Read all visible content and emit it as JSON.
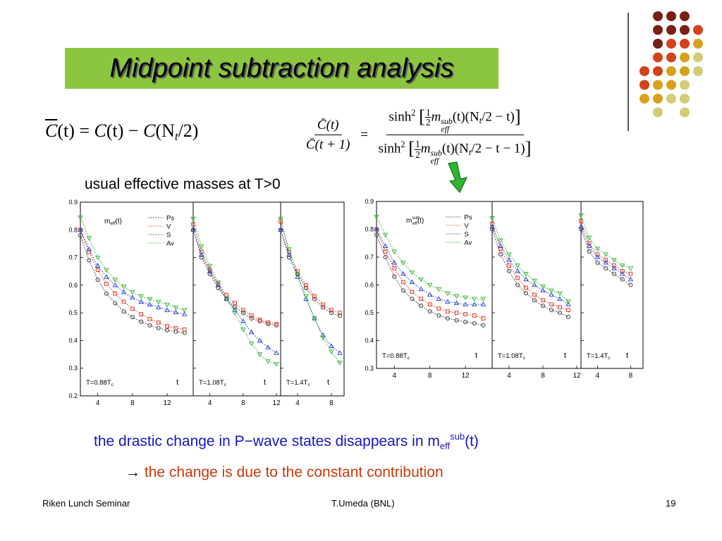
{
  "slide": {
    "title": "Midpoint subtraction analysis",
    "caption_top": "usual effective masses at T>0",
    "line1_text": "the drastic change in P−wave states disappears in m",
    "line1_sub": "eff",
    "line1_sup": "sub",
    "line1_tail": "(t)",
    "line2_arrow": "→",
    "line2_text": "the change is due to the constant contribution",
    "footer_left": "Riken Lunch Seminar",
    "footer_center": "T.Umeda (BNL)",
    "footer_right": "19",
    "accent_color": "#8cc63f",
    "arrow_color": "#2db52d",
    "icons": [
      "down-arrow-icon",
      "decorative-dots-icon"
    ]
  },
  "formulas": {
    "f1": {
      "cbar": "C",
      "arg1": "(t) = ",
      "c1": "C",
      "arg2": "(t) − ",
      "c2": "C",
      "arg3": "(N",
      "nsub": "t",
      "arg4": "/2)"
    },
    "f2": {
      "lhs_num": "C̄(t)",
      "lhs_den": "C̄(t + 1)",
      "eq": "=",
      "sinh": "sinh",
      "sq": "2",
      "half_n": "1",
      "half_d": "2",
      "m": "m",
      "sup": "sub",
      "subs": "eff",
      "num_tail": "(t)(N",
      "num_tail2": "/2 − t)",
      "den_tail2": "/2 − t − 1)",
      "nt": "t"
    }
  },
  "chart_data": [
    {
      "type": "line",
      "panel_group": "left",
      "ylim": [
        0.2,
        0.9
      ],
      "yticks": [
        "0.9",
        "0.8",
        "0.7",
        "0.6",
        "0.5",
        "0.4",
        "0.3",
        "0.2"
      ],
      "ytick_values": [
        0.9,
        0.8,
        0.7,
        0.6,
        0.5,
        0.4,
        0.3,
        0.2
      ],
      "legend_title": "m",
      "legend_title_sub": "eff",
      "legend_title_tail": "(t)",
      "legend": [
        "Ps",
        "V",
        "S",
        "Av"
      ],
      "series_colors": [
        "#333333",
        "#e03020",
        "#2040d0",
        "#30b030"
      ],
      "xlabel": "t",
      "panels": [
        {
          "label": "T=0.88T",
          "label_sub": "c",
          "xlim": [
            2,
            15
          ],
          "xticks": [
            "4",
            "8",
            "12"
          ],
          "xtick_values": [
            4,
            8,
            12
          ],
          "x": [
            2,
            3,
            4,
            5,
            6,
            7,
            8,
            9,
            10,
            11,
            12,
            13,
            14
          ],
          "series": [
            {
              "name": "Ps",
              "values": [
                0.78,
                0.69,
                0.62,
                0.57,
                0.535,
                0.505,
                0.485,
                0.468,
                0.455,
                0.445,
                0.437,
                0.432,
                0.428
              ]
            },
            {
              "name": "V",
              "values": [
                0.8,
                0.72,
                0.655,
                0.605,
                0.57,
                0.54,
                0.515,
                0.495,
                0.478,
                0.465,
                0.452,
                0.445,
                0.44
              ]
            },
            {
              "name": "S",
              "values": [
                0.8,
                0.73,
                0.67,
                0.63,
                0.6,
                0.575,
                0.555,
                0.54,
                0.53,
                0.52,
                0.51,
                0.502,
                0.495
              ]
            },
            {
              "name": "Av",
              "values": [
                0.845,
                0.77,
                0.7,
                0.655,
                0.62,
                0.595,
                0.575,
                0.56,
                0.55,
                0.54,
                0.53,
                0.52,
                0.51
              ]
            }
          ]
        },
        {
          "label": "T=1.08T",
          "label_sub": "c",
          "xlim": [
            2,
            12.5
          ],
          "xticks": [
            "4",
            "8",
            "12"
          ],
          "xtick_values": [
            4,
            8,
            12
          ],
          "x": [
            2,
            3,
            4,
            5,
            6,
            7,
            8,
            9,
            10,
            11,
            12
          ],
          "series": [
            {
              "name": "Ps",
              "values": [
                0.8,
                0.7,
                0.64,
                0.59,
                0.55,
                0.52,
                0.5,
                0.48,
                0.47,
                0.46,
                0.455
              ]
            },
            {
              "name": "V",
              "values": [
                0.82,
                0.72,
                0.655,
                0.605,
                0.565,
                0.535,
                0.51,
                0.49,
                0.475,
                0.465,
                0.46
              ]
            },
            {
              "name": "S",
              "values": [
                0.8,
                0.71,
                0.65,
                0.6,
                0.55,
                0.51,
                0.47,
                0.43,
                0.4,
                0.375,
                0.355
              ]
            },
            {
              "name": "Av",
              "values": [
                0.84,
                0.74,
                0.67,
                0.61,
                0.55,
                0.5,
                0.44,
                0.39,
                0.35,
                0.325,
                0.315
              ]
            }
          ]
        },
        {
          "label": "T=1.4T",
          "label_sub": "c",
          "xlim": [
            2,
            9.5
          ],
          "xticks": [
            "4",
            "8"
          ],
          "xtick_values": [
            4,
            8
          ],
          "x": [
            2,
            3,
            4,
            5,
            6,
            7,
            8,
            9
          ],
          "series": [
            {
              "name": "Ps",
              "values": [
                0.8,
                0.7,
                0.64,
                0.59,
                0.55,
                0.52,
                0.5,
                0.49
              ]
            },
            {
              "name": "V",
              "values": [
                0.83,
                0.72,
                0.65,
                0.6,
                0.56,
                0.53,
                0.51,
                0.5
              ]
            },
            {
              "name": "S",
              "values": [
                0.8,
                0.71,
                0.63,
                0.55,
                0.48,
                0.42,
                0.38,
                0.355
              ]
            },
            {
              "name": "Av",
              "values": [
                0.84,
                0.73,
                0.64,
                0.56,
                0.48,
                0.41,
                0.36,
                0.32
              ]
            }
          ]
        }
      ]
    },
    {
      "type": "line",
      "panel_group": "right",
      "ylim": [
        0.3,
        0.9
      ],
      "yticks": [
        "0.9",
        "0.8",
        "0.7",
        "0.6",
        "0.5",
        "0.4",
        "0.3"
      ],
      "ytick_values": [
        0.9,
        0.8,
        0.7,
        0.6,
        0.5,
        0.4,
        0.3
      ],
      "legend_title": "m",
      "legend_title_sub": "eff",
      "legend_title_sup": "sub",
      "legend_title_tail": "(t)",
      "legend": [
        "Ps",
        "V",
        "S",
        "Av"
      ],
      "series_colors": [
        "#333333",
        "#e03020",
        "#2040d0",
        "#30b030"
      ],
      "xlabel": "t",
      "panels": [
        {
          "label": "T=0.88T",
          "label_sub": "c",
          "xlim": [
            2,
            15
          ],
          "xticks": [
            "4",
            "8",
            "12"
          ],
          "xtick_values": [
            4,
            8,
            12
          ],
          "x": [
            2,
            3,
            4,
            5,
            6,
            7,
            8,
            9,
            10,
            11,
            12,
            13,
            14
          ],
          "series": [
            {
              "name": "Ps",
              "values": [
                0.78,
                0.7,
                0.63,
                0.58,
                0.55,
                0.525,
                0.505,
                0.49,
                0.48,
                0.473,
                0.467,
                0.462,
                0.455
              ]
            },
            {
              "name": "V",
              "values": [
                0.8,
                0.72,
                0.66,
                0.61,
                0.575,
                0.55,
                0.53,
                0.515,
                0.505,
                0.5,
                0.495,
                0.49,
                0.48
              ]
            },
            {
              "name": "S",
              "values": [
                0.8,
                0.74,
                0.68,
                0.64,
                0.61,
                0.585,
                0.565,
                0.55,
                0.54,
                0.535,
                0.53,
                0.53,
                0.53
              ]
            },
            {
              "name": "Av",
              "values": [
                0.845,
                0.78,
                0.72,
                0.68,
                0.645,
                0.62,
                0.6,
                0.585,
                0.57,
                0.56,
                0.555,
                0.55,
                0.55
              ]
            }
          ]
        },
        {
          "label": "T=1.08T",
          "label_sub": "c",
          "xlim": [
            2,
            12.5
          ],
          "xticks": [
            "4",
            "8",
            "12"
          ],
          "xtick_values": [
            4,
            8,
            12
          ],
          "x": [
            2,
            3,
            4,
            5,
            6,
            7,
            8,
            9,
            10,
            11
          ],
          "series": [
            {
              "name": "Ps",
              "values": [
                0.8,
                0.71,
                0.65,
                0.6,
                0.57,
                0.545,
                0.525,
                0.51,
                0.5,
                0.485
              ]
            },
            {
              "name": "V",
              "values": [
                0.82,
                0.73,
                0.67,
                0.625,
                0.59,
                0.565,
                0.545,
                0.53,
                0.52,
                0.51
              ]
            },
            {
              "name": "S",
              "values": [
                0.81,
                0.74,
                0.69,
                0.65,
                0.62,
                0.6,
                0.58,
                0.565,
                0.55,
                0.53
              ]
            },
            {
              "name": "Av",
              "values": [
                0.84,
                0.76,
                0.71,
                0.67,
                0.64,
                0.615,
                0.595,
                0.58,
                0.57,
                0.54
              ]
            }
          ]
        },
        {
          "label": "T=1.4T",
          "label_sub": "c",
          "xlim": [
            2,
            9.5
          ],
          "xticks": [
            "4",
            "8"
          ],
          "xtick_values": [
            4,
            8
          ],
          "x": [
            2,
            3,
            4,
            5,
            6,
            7,
            8
          ],
          "series": [
            {
              "name": "Ps",
              "values": [
                0.8,
                0.72,
                0.68,
                0.66,
                0.64,
                0.62,
                0.6
              ]
            },
            {
              "name": "V",
              "values": [
                0.83,
                0.75,
                0.71,
                0.69,
                0.67,
                0.65,
                0.64
              ]
            },
            {
              "name": "S",
              "values": [
                0.81,
                0.74,
                0.7,
                0.68,
                0.66,
                0.64,
                0.62
              ]
            },
            {
              "name": "Av",
              "values": [
                0.85,
                0.77,
                0.73,
                0.71,
                0.69,
                0.67,
                0.66
              ]
            }
          ]
        }
      ]
    }
  ]
}
